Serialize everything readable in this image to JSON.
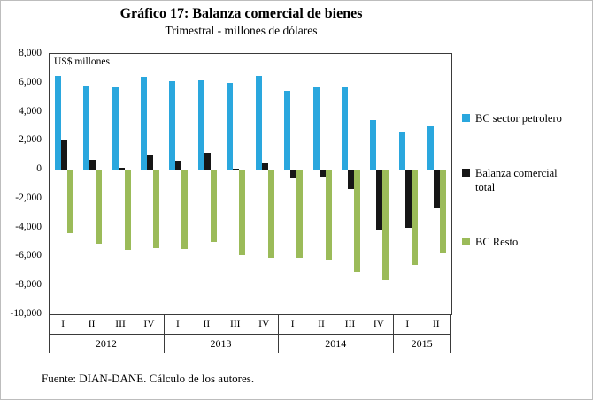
{
  "header": {
    "title": "Gráfico 17: Balanza comercial de bienes",
    "subtitle": "Trimestral - millones de dólares"
  },
  "footer": {
    "source": "Fuente: DIAN-DANE. Cálculo de los autores."
  },
  "chart_data": {
    "type": "bar",
    "title": "Gráfico 17: Balanza comercial de bienes",
    "subtitle": "Trimestral - millones de dólares",
    "plot_label": "US$ millones",
    "categories": [
      "I",
      "II",
      "III",
      "IV",
      "I",
      "II",
      "III",
      "IV",
      "I",
      "II",
      "III",
      "IV",
      "I",
      "II"
    ],
    "year_groups": [
      {
        "label": "2012",
        "span": 4
      },
      {
        "label": "2013",
        "span": 4
      },
      {
        "label": "2014",
        "span": 4
      },
      {
        "label": "2015",
        "span": 2
      }
    ],
    "series": [
      {
        "name": "BC sector petrolero",
        "color": "#2AA7DE",
        "values": [
          6500,
          5800,
          5700,
          6400,
          6100,
          6200,
          6000,
          6500,
          5450,
          5700,
          5750,
          3400,
          2600,
          3000
        ]
      },
      {
        "name": "Balanza comercial total",
        "color": "#161616",
        "values": [
          2100,
          700,
          150,
          1000,
          620,
          1180,
          60,
          430,
          -620,
          -500,
          -1350,
          -4200,
          -4000,
          -2700
        ]
      },
      {
        "name": "BC Resto",
        "color": "#9BBB59",
        "values": [
          -4400,
          -5100,
          -5550,
          -5400,
          -5480,
          -5020,
          -5940,
          -6070,
          -6070,
          -6200,
          -7100,
          -7600,
          -6600,
          -5700
        ]
      }
    ],
    "ylim": [
      -10000,
      8000
    ],
    "ytick_step": 2000,
    "grid": false,
    "legend_position": "right"
  }
}
